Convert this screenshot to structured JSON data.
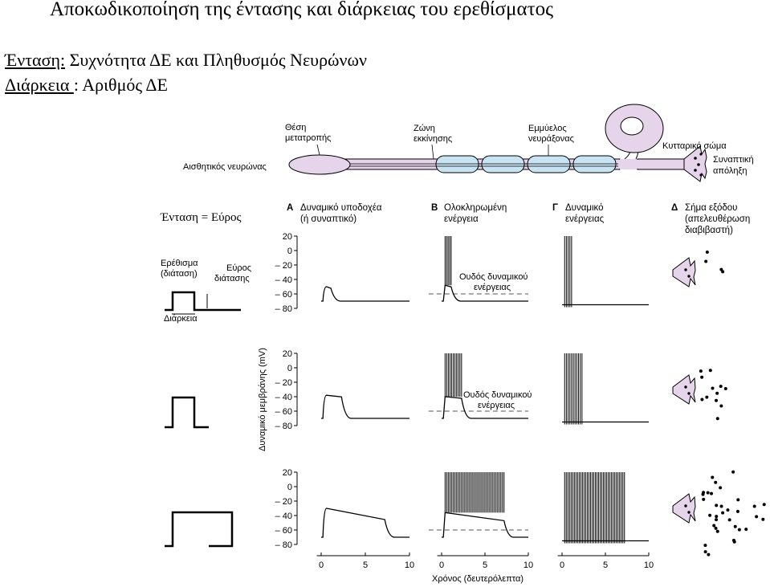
{
  "title": "Αποκωδικοποίηση της έντασης και διάρκειας του ερεθίσματος",
  "intensity_label": "Ένταση:",
  "intensity_text": " Συχνότητα ΔΕ και  Πληθυσμός  Νευρώνων",
  "duration_label": "Διάρκεια ",
  "duration_text": ": Αριθμός ΔΕ",
  "neuron": {
    "sensory_neuron": "Αισθητικός νευρώνας",
    "transduction_site": [
      "Θέση",
      "μετατροπής"
    ],
    "trigger_zone": [
      "Ζώνη",
      "εκκίνησης"
    ],
    "myelinated_axon": [
      "Εμμύελος",
      "νευράξονας"
    ],
    "cell_body": "Κυτταρικό σώμα",
    "synaptic_ending": [
      "Συναπτική",
      "απόληξη"
    ]
  },
  "left": {
    "intensity_eq": "Ένταση = Εύρος",
    "stimulus": [
      "Ερέθισμα",
      "(διάταση)"
    ],
    "amplitude": [
      "Εύρος",
      "διάτασης"
    ],
    "duration": "Διάρκεια"
  },
  "columns": {
    "A": {
      "letter": "Α",
      "lines": [
        "Δυναμικό υποδοχέα",
        "(ή συναπτικό)"
      ]
    },
    "B": {
      "letter": "Β",
      "lines": [
        "Ολοκληρωμένη",
        "ενέργεια"
      ]
    },
    "G": {
      "letter": "Γ",
      "lines": [
        "Δυναμικό",
        "ενέργειας"
      ]
    },
    "D": {
      "letter": "Δ",
      "lines": [
        "Σήμα εξόδου",
        "(απελευθέρωση",
        "διαβιβαστή)"
      ]
    }
  },
  "threshold_label": [
    "Ουδός δυναμικού",
    "ενέργειας"
  ],
  "y_axis_label": "Δυναμικό μεμβράνης (mV)",
  "x_axis_label": "Χρόνος (δευτερόλεπτα)",
  "y_ticks": [
    "20",
    "0",
    "– 20",
    "– 40",
    "– 60",
    "– 80"
  ],
  "x_ticks": [
    "0",
    "5",
    "10"
  ],
  "spike_counts": [
    5,
    11,
    38
  ],
  "transmitter_dot_counts": [
    4,
    12,
    34
  ]
}
